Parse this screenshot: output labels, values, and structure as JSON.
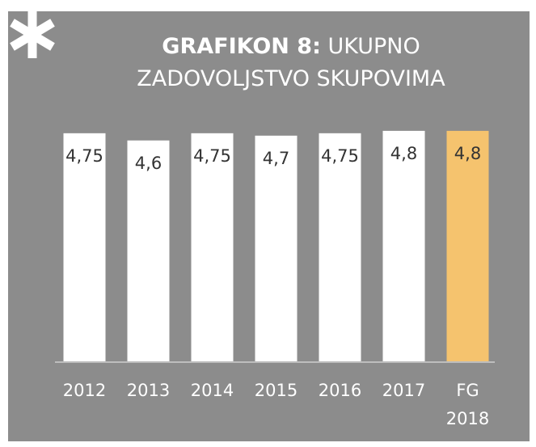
{
  "chart_data": {
    "type": "bar",
    "title_label": "GRAFIKON 8:",
    "title": "UKUPNO ZADOVOLJSTVO SKUPOVIMA",
    "categories": [
      "2012",
      "2013",
      "2014",
      "2015",
      "2016",
      "2017",
      "FG 2018"
    ],
    "values": [
      4.75,
      4.6,
      4.75,
      4.7,
      4.75,
      4.8,
      4.8
    ],
    "value_labels": [
      "4,75",
      "4,6",
      "4,75",
      "4,7",
      "4,75",
      "4,8",
      "4,8"
    ],
    "colors": [
      "#ffffff",
      "#ffffff",
      "#ffffff",
      "#ffffff",
      "#ffffff",
      "#ffffff",
      "#f5c36e"
    ],
    "ylim": [
      0,
      5
    ]
  }
}
